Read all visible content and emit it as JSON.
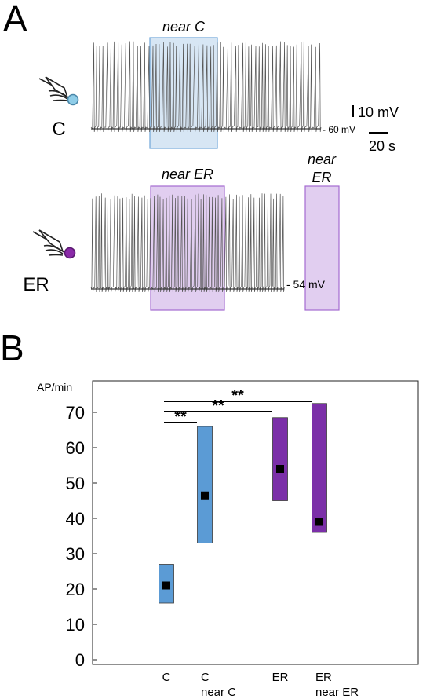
{
  "panel_a": {
    "letter": "A",
    "cells": [
      {
        "label": "C",
        "color": "#8fcde8",
        "resting_label": "- 60 mV",
        "highlights": [
          {
            "label_lines": [
              "near C"
            ],
            "color": "#6ea5d8"
          }
        ]
      },
      {
        "label": "ER",
        "color": "#8a2aa8",
        "resting_label": "- 54 mV",
        "highlights": [
          {
            "label_lines": [
              "near ER"
            ],
            "color": "#a46ad0"
          },
          {
            "label_lines": [
              "near",
              "ER"
            ],
            "color": "#a46ad0"
          }
        ]
      }
    ],
    "scalebar": {
      "voltage": "10 mV",
      "time": "20 s"
    }
  },
  "panel_b": {
    "letter": "B"
  },
  "chart_data": {
    "type": "floating-bar",
    "ylabel": "AP/min",
    "ylim": [
      0,
      75
    ],
    "yticks": [
      0,
      10,
      20,
      30,
      40,
      50,
      60,
      70
    ],
    "categories": [
      {
        "label_lines": [
          "C"
        ],
        "low": 16,
        "high": 27,
        "median": 21,
        "color": "#5b9bd5"
      },
      {
        "label_lines": [
          "C",
          "near C"
        ],
        "low": 33,
        "high": 66,
        "median": 46.5,
        "color": "#5b9bd5"
      },
      {
        "label_lines": [
          "ER"
        ],
        "low": 45,
        "high": 68.5,
        "median": 54,
        "color": "#7b2fa8"
      },
      {
        "label_lines": [
          "ER",
          "near ER"
        ],
        "low": 36,
        "high": 72.5,
        "median": 39,
        "color": "#7b2fa8"
      }
    ],
    "significance": [
      {
        "from": 0,
        "to": 1,
        "label": "**"
      },
      {
        "from": 0,
        "to": 2,
        "label": "**"
      },
      {
        "from": 0,
        "to": 3,
        "label": "**"
      }
    ]
  }
}
